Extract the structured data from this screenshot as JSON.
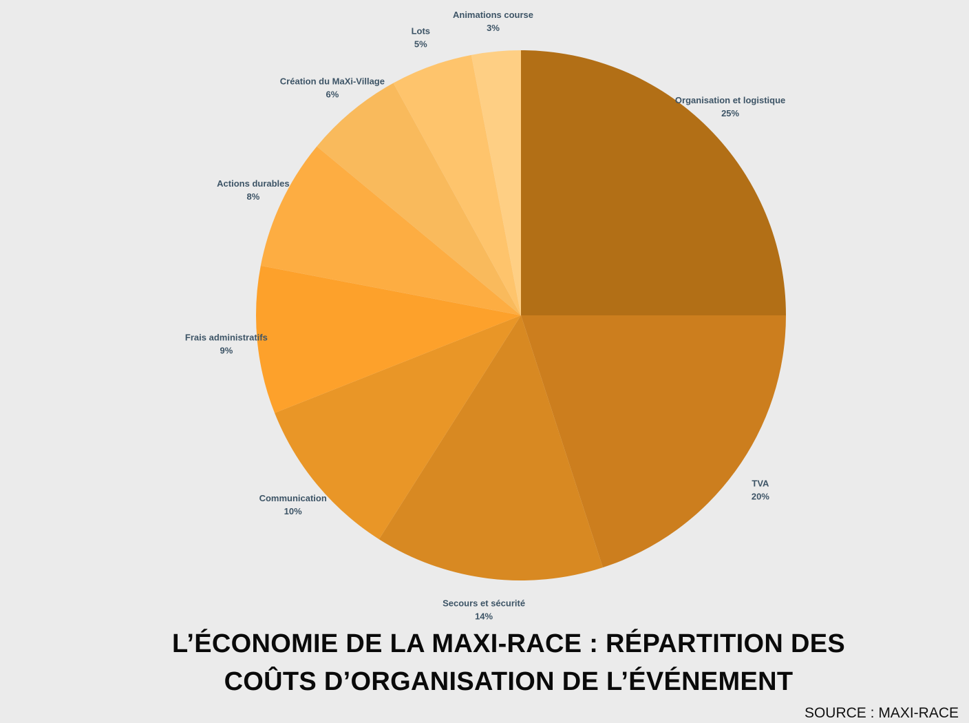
{
  "chart_data": {
    "type": "pie",
    "title_lines": [
      "L’ÉCONOMIE DE LA MAXI-RACE : RÉPARTITION DES",
      "COÛTS D’ORGANISATION DE L’ÉVÉNEMENT"
    ],
    "source": "SOURCE : MAXI-RACE",
    "slices": [
      {
        "label": "Organisation et logistique",
        "value": 25,
        "value_label": "25%",
        "color": "#b26f16"
      },
      {
        "label": "TVA",
        "value": 20,
        "value_label": "20%",
        "color": "#cc7e1e"
      },
      {
        "label": "Secours et sécurité",
        "value": 14,
        "value_label": "14%",
        "color": "#d88922"
      },
      {
        "label": "Communication",
        "value": 10,
        "value_label": "10%",
        "color": "#e99627"
      },
      {
        "label": "Frais administratifs",
        "value": 9,
        "value_label": "9%",
        "color": "#fda12b"
      },
      {
        "label": "Actions durables",
        "value": 8,
        "value_label": "8%",
        "color": "#fdad42"
      },
      {
        "label": "Création du MaXi-Village",
        "value": 6,
        "value_label": "6%",
        "color": "#f9ba5c"
      },
      {
        "label": "Lots",
        "value": 5,
        "value_label": "5%",
        "color": "#fec46c"
      },
      {
        "label": "Animations course",
        "value": 3,
        "value_label": "3%",
        "color": "#fecf84"
      }
    ],
    "background_color": "#ebebeb",
    "label_color": "#3d5466"
  }
}
